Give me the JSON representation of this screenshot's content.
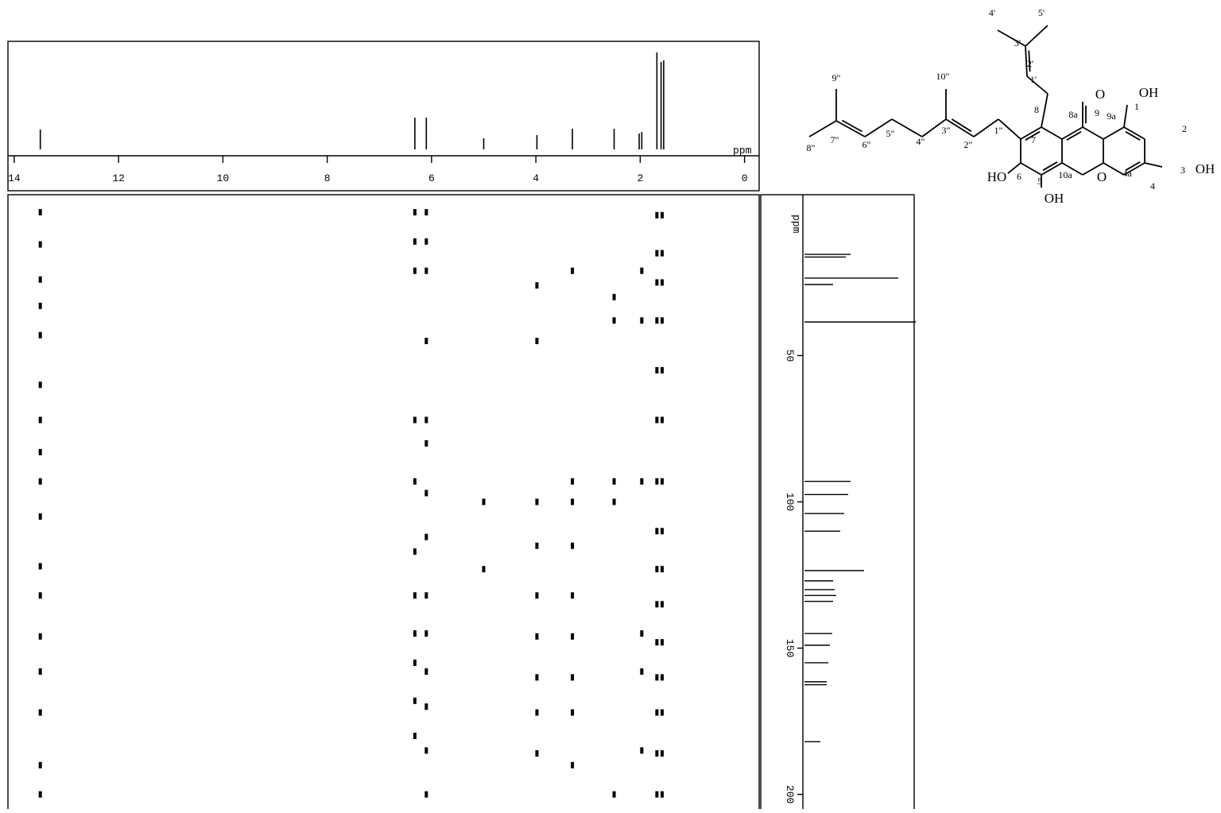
{
  "spectrum_1h": {
    "unit": "ppm",
    "xlim": [
      14.12,
      -0.28
    ],
    "xticks": [
      14,
      12,
      10,
      8,
      6,
      4,
      2,
      0
    ],
    "peaks": [
      [
        13.5,
        25
      ],
      [
        6.32,
        40
      ],
      [
        6.1,
        40
      ],
      [
        5.0,
        14
      ],
      [
        3.98,
        18
      ],
      [
        3.3,
        26
      ],
      [
        2.5,
        26
      ],
      [
        2.02,
        20
      ],
      [
        1.97,
        22
      ],
      [
        1.68,
        122
      ],
      [
        1.6,
        110
      ],
      [
        1.55,
        112
      ]
    ]
  },
  "spectrum_13c": {
    "unit": "ppm",
    "ylim": [
      -5,
      205
    ],
    "yticks": [
      50,
      100,
      150,
      200
    ],
    "peaks": [
      [
        15.4,
        58
      ],
      [
        16.3,
        52
      ],
      [
        23.5,
        118
      ],
      [
        25.7,
        36
      ],
      [
        38.5,
        140
      ],
      [
        93,
        58
      ],
      [
        97.5,
        55
      ],
      [
        104,
        50
      ],
      [
        110,
        45
      ],
      [
        123.5,
        75
      ],
      [
        127,
        36
      ],
      [
        130,
        38
      ],
      [
        132,
        40
      ],
      [
        134,
        36
      ],
      [
        145,
        35
      ],
      [
        149,
        32
      ],
      [
        155,
        30
      ],
      [
        161.5,
        28
      ],
      [
        162.5,
        28
      ],
      [
        182,
        20
      ]
    ]
  },
  "cross_peaks": [
    [
      13.5,
      1
    ],
    [
      13.5,
      12
    ],
    [
      13.5,
      24
    ],
    [
      13.5,
      33
    ],
    [
      13.5,
      43
    ],
    [
      13.5,
      60
    ],
    [
      13.5,
      72
    ],
    [
      13.5,
      83
    ],
    [
      13.5,
      93
    ],
    [
      13.5,
      105
    ],
    [
      13.5,
      122
    ],
    [
      13.5,
      132
    ],
    [
      13.5,
      146
    ],
    [
      13.5,
      158
    ],
    [
      13.5,
      172
    ],
    [
      13.5,
      190
    ],
    [
      13.5,
      200
    ],
    [
      6.32,
      1
    ],
    [
      6.32,
      11
    ],
    [
      6.32,
      21
    ],
    [
      6.32,
      72
    ],
    [
      6.32,
      93
    ],
    [
      6.32,
      117
    ],
    [
      6.32,
      132
    ],
    [
      6.32,
      145
    ],
    [
      6.32,
      155
    ],
    [
      6.32,
      168
    ],
    [
      6.32,
      180
    ],
    [
      6.1,
      1
    ],
    [
      6.1,
      11
    ],
    [
      6.1,
      21
    ],
    [
      6.1,
      45
    ],
    [
      6.1,
      72
    ],
    [
      6.1,
      80
    ],
    [
      6.1,
      97
    ],
    [
      6.1,
      112
    ],
    [
      6.1,
      132
    ],
    [
      6.1,
      145
    ],
    [
      6.1,
      158
    ],
    [
      6.1,
      170
    ],
    [
      6.1,
      185
    ],
    [
      6.1,
      200
    ],
    [
      5.0,
      100
    ],
    [
      5.0,
      123
    ],
    [
      3.98,
      26
    ],
    [
      3.98,
      45
    ],
    [
      3.98,
      100
    ],
    [
      3.98,
      115
    ],
    [
      3.98,
      132
    ],
    [
      3.98,
      146
    ],
    [
      3.98,
      160
    ],
    [
      3.98,
      172
    ],
    [
      3.98,
      186
    ],
    [
      3.3,
      21
    ],
    [
      3.3,
      93
    ],
    [
      3.3,
      100
    ],
    [
      3.3,
      115
    ],
    [
      3.3,
      132
    ],
    [
      3.3,
      146
    ],
    [
      3.3,
      160
    ],
    [
      3.3,
      172
    ],
    [
      3.3,
      190
    ],
    [
      2.5,
      30
    ],
    [
      2.5,
      38
    ],
    [
      2.5,
      93
    ],
    [
      2.5,
      100
    ],
    [
      2.5,
      200
    ],
    [
      1.97,
      21
    ],
    [
      1.97,
      38
    ],
    [
      1.97,
      93
    ],
    [
      1.97,
      145
    ],
    [
      1.97,
      158
    ],
    [
      1.97,
      185
    ],
    [
      1.68,
      2
    ],
    [
      1.68,
      15
    ],
    [
      1.68,
      25
    ],
    [
      1.68,
      38
    ],
    [
      1.68,
      55
    ],
    [
      1.68,
      72
    ],
    [
      1.68,
      93
    ],
    [
      1.68,
      110
    ],
    [
      1.68,
      123
    ],
    [
      1.68,
      135
    ],
    [
      1.68,
      148
    ],
    [
      1.68,
      160
    ],
    [
      1.68,
      172
    ],
    [
      1.68,
      186
    ],
    [
      1.68,
      200
    ],
    [
      1.58,
      2
    ],
    [
      1.58,
      15
    ],
    [
      1.58,
      25
    ],
    [
      1.58,
      38
    ],
    [
      1.58,
      55
    ],
    [
      1.58,
      72
    ],
    [
      1.58,
      93
    ],
    [
      1.58,
      110
    ],
    [
      1.58,
      123
    ],
    [
      1.58,
      135
    ],
    [
      1.58,
      148
    ],
    [
      1.58,
      160
    ],
    [
      1.58,
      172
    ],
    [
      1.58,
      186
    ],
    [
      1.58,
      200
    ]
  ],
  "structure": {
    "labels": [
      "4'",
      "5'",
      "3'",
      "2'",
      "1'",
      "9\"",
      "10\"",
      "8\"",
      "7\"",
      "6\"",
      "5\"",
      "4\"",
      "3\"",
      "2\"",
      "1\"",
      "8",
      "8a",
      "9",
      "9a",
      "O",
      "OH",
      "1",
      "2",
      "3",
      "OH",
      "4",
      "4a",
      "O",
      "10a",
      "5",
      "OH",
      "HO",
      "6",
      "7"
    ]
  }
}
